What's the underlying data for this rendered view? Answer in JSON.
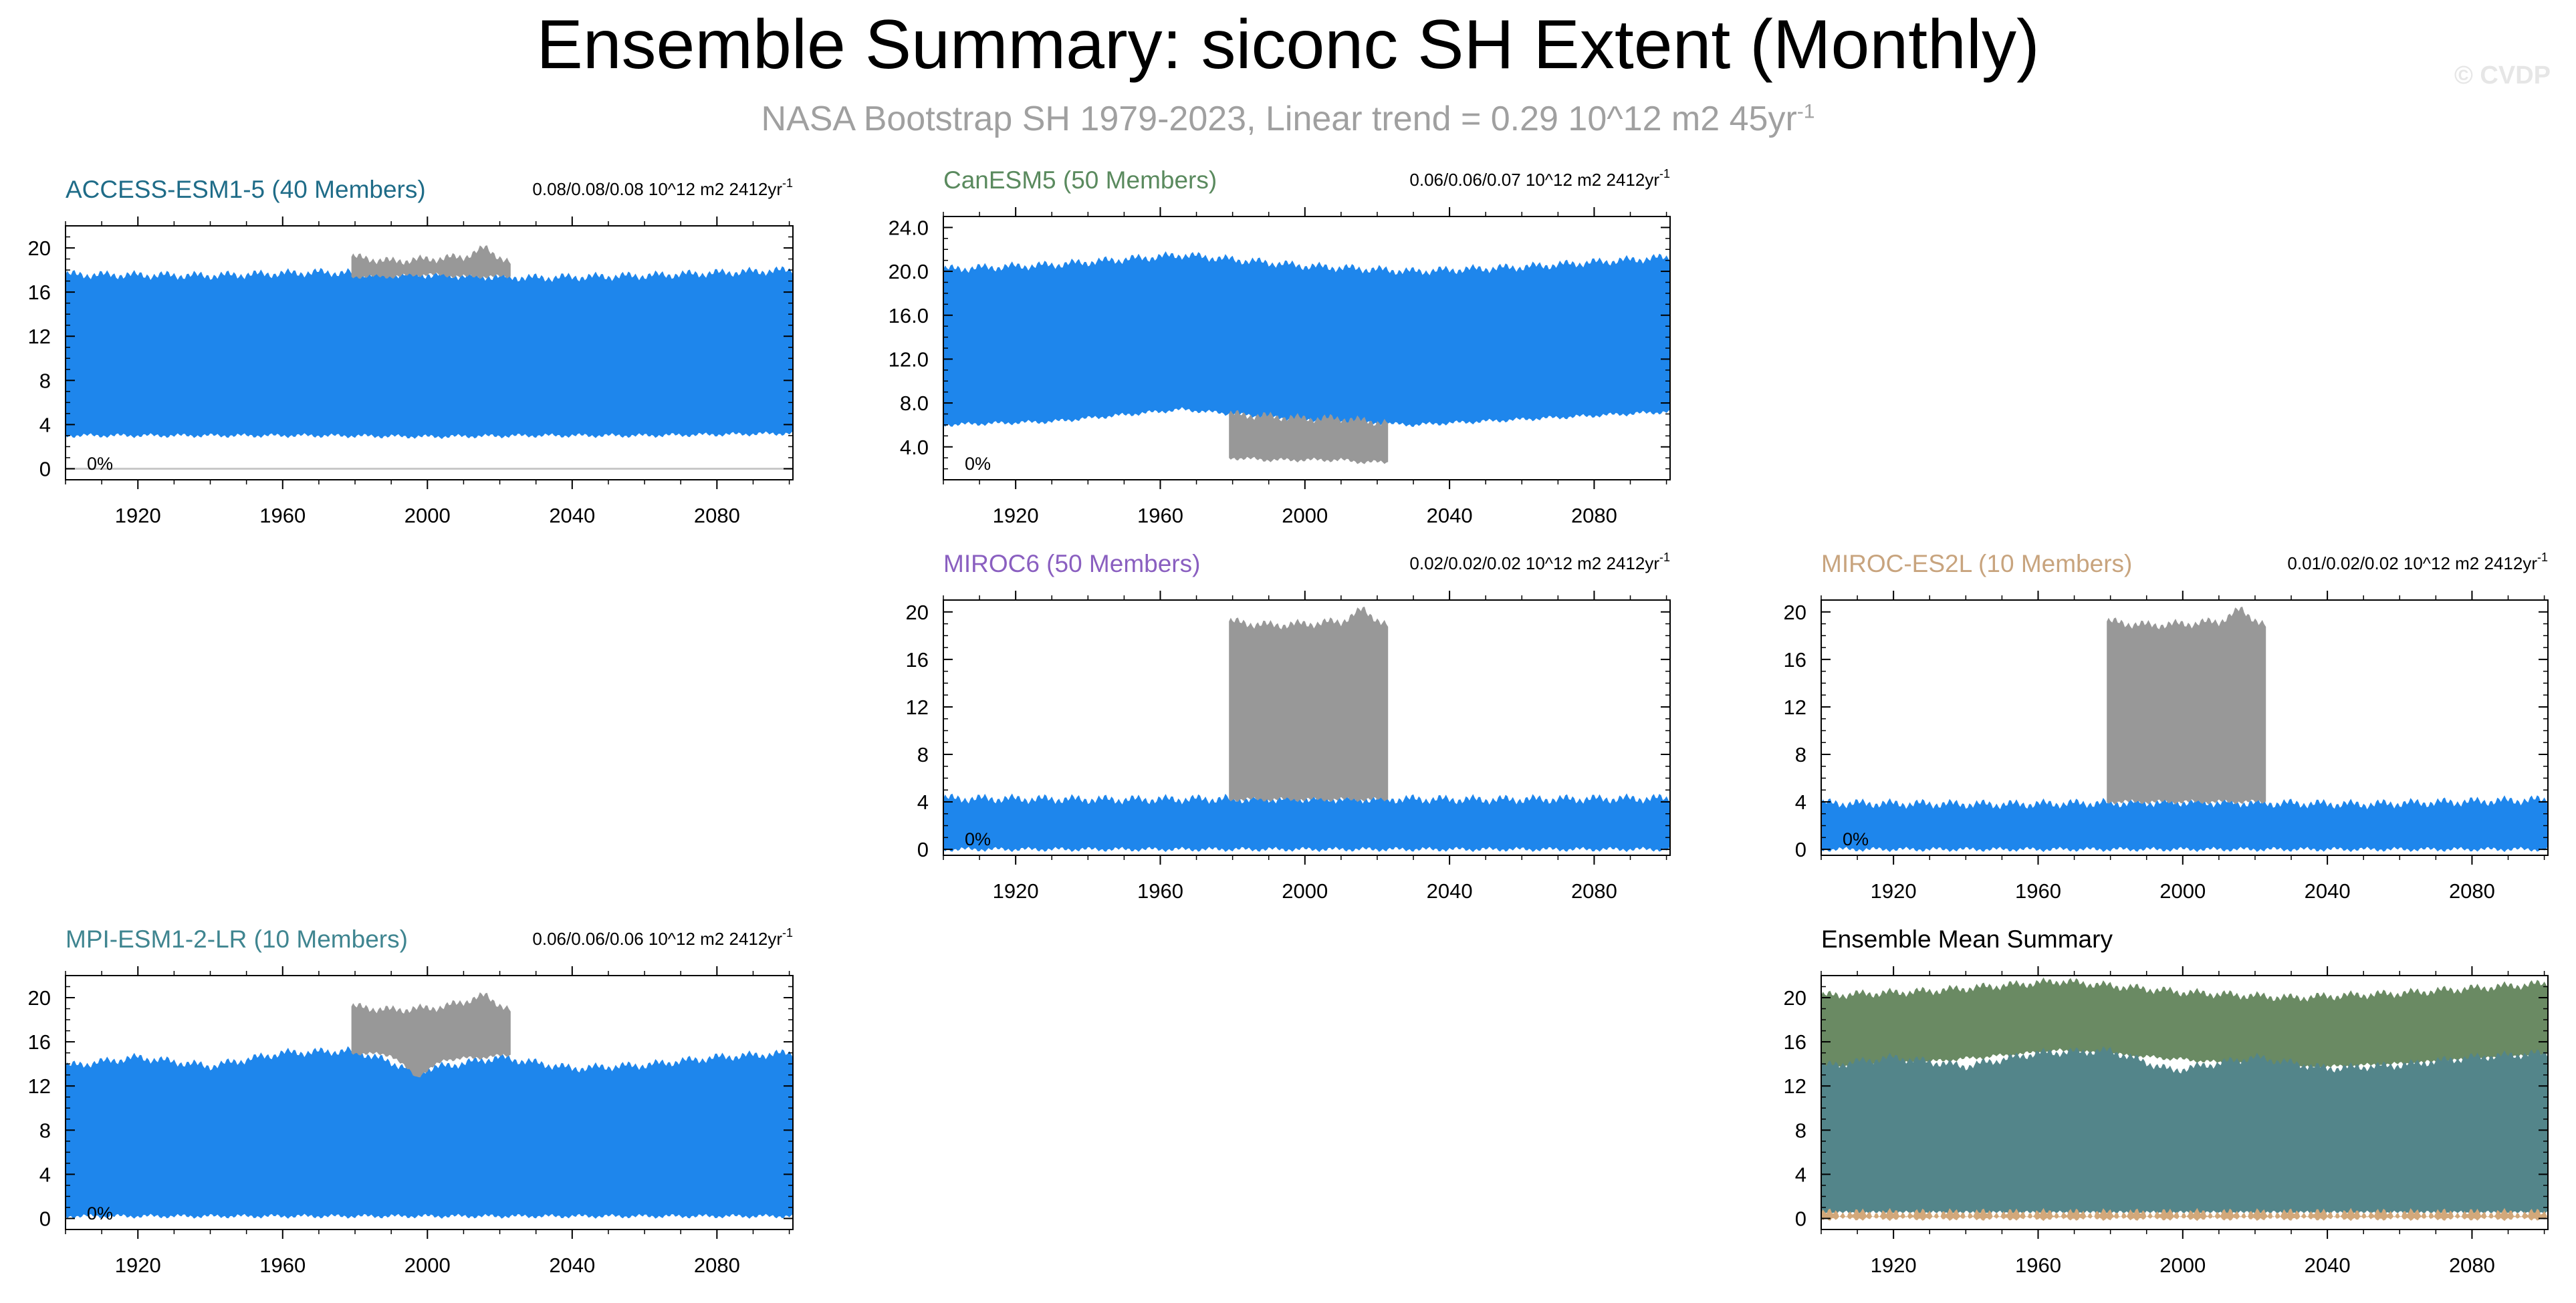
{
  "title": "Ensemble Summary: siconc SH Extent (Monthly)",
  "subtitle": {
    "text": "NASA Bootstrap SH 1979-2023, Linear trend = 0.29 10^12 m2 45yr",
    "sup": "-1"
  },
  "credit": "© CVDP",
  "colors": {
    "model_fill": "#1e86ec",
    "obs_fill": "#989898",
    "mean_canesm5": "#6a8a63",
    "mean_mpi": "#53858a",
    "mean_miroc": "#d2a87a"
  },
  "chart_data": [
    {
      "type": "area",
      "panel": "access",
      "title": "ACCESS-ESM1-5 (40 Members)",
      "title_color": "#1f6c88",
      "trend_text": "0.08/0.08/0.08 10^12 m2 2412yr",
      "trend_sup": "-1",
      "percent_label": "0%",
      "xlim": [
        1900,
        2101
      ],
      "ylim": [
        -1,
        22
      ],
      "yticks": [
        0,
        4,
        8,
        12,
        16,
        20
      ],
      "ytick_labels": [
        "0",
        "4",
        "8",
        "12",
        "16",
        "20"
      ],
      "xticks": [
        1920,
        1960,
        2000,
        2040,
        2080
      ],
      "ensemble_band": {
        "x": [
          1900,
          1940,
          1970,
          2000,
          2030,
          2060,
          2101
        ],
        "max": [
          17.6,
          17.5,
          17.8,
          17.6,
          17.3,
          17.5,
          18.0
        ],
        "min": [
          3.0,
          3.0,
          3.0,
          2.9,
          3.0,
          3.0,
          3.2
        ]
      },
      "observations": {
        "x": [
          1979,
          1990,
          2000,
          2010,
          2016,
          2023
        ],
        "max": [
          19.2,
          18.8,
          19.0,
          19.2,
          20.0,
          18.6
        ],
        "min": [
          17.4,
          17.4,
          17.6,
          17.4,
          17.4,
          17.4
        ]
      },
      "show_zero_line": true
    },
    {
      "type": "area",
      "panel": "canesm5",
      "title": "CanESM5 (50 Members)",
      "title_color": "#5a8a5e",
      "trend_text": "0.06/0.06/0.07 10^12 m2 2412yr",
      "trend_sup": "-1",
      "percent_label": "0%",
      "xlim": [
        1900,
        2101
      ],
      "ylim": [
        1.0,
        25.0
      ],
      "yticks": [
        4,
        8,
        12,
        16,
        20,
        24
      ],
      "ytick_labels": [
        "4.0",
        "8.0",
        "12.0",
        "16.0",
        "20.0",
        "24.0"
      ],
      "xticks": [
        1920,
        1960,
        2000,
        2040,
        2080
      ],
      "ensemble_band": {
        "x": [
          1900,
          1930,
          1966,
          2000,
          2030,
          2060,
          2101
        ],
        "max": [
          20.2,
          20.6,
          21.5,
          20.5,
          20.0,
          20.4,
          21.3
        ],
        "min": [
          6.0,
          6.3,
          7.4,
          6.4,
          6.0,
          6.5,
          7.2
        ]
      },
      "observations": {
        "x": [
          1979,
          1990,
          2000,
          2010,
          2016,
          2023
        ],
        "max": [
          7.0,
          6.8,
          6.6,
          6.6,
          6.4,
          6.2
        ],
        "min": [
          3.0,
          2.8,
          2.8,
          2.8,
          2.6,
          2.6
        ]
      },
      "show_zero_line": false
    },
    {
      "type": "area",
      "panel": "miroc6",
      "title": "MIROC6 (50 Members)",
      "title_color": "#8a5fc0",
      "trend_text": "0.02/0.02/0.02 10^12 m2 2412yr",
      "trend_sup": "-1",
      "percent_label": "0%",
      "xlim": [
        1900,
        2101
      ],
      "ylim": [
        -0.5,
        21
      ],
      "yticks": [
        0,
        4,
        8,
        12,
        16,
        20
      ],
      "ytick_labels": [
        "0",
        "4",
        "8",
        "12",
        "16",
        "20"
      ],
      "xticks": [
        1920,
        1960,
        2000,
        2040,
        2080
      ],
      "ensemble_band": {
        "x": [
          1900,
          1950,
          2000,
          2050,
          2101
        ],
        "max": [
          4.3,
          4.2,
          4.3,
          4.2,
          4.3
        ],
        "min": [
          0.0,
          0.0,
          0.0,
          0.0,
          0.0
        ]
      },
      "observations": {
        "x": [
          1979,
          1990,
          2000,
          2010,
          2016,
          2023
        ],
        "max": [
          19.2,
          18.9,
          19.0,
          19.2,
          20.2,
          18.8
        ],
        "min": [
          4.2,
          4.2,
          4.2,
          4.2,
          4.2,
          4.2
        ]
      },
      "show_zero_line": false
    },
    {
      "type": "area",
      "panel": "miroces2l",
      "title": "MIROC-ES2L (10 Members)",
      "title_color": "#c8a47e",
      "trend_text": "0.01/0.02/0.02 10^12 m2 2412yr",
      "trend_sup": "-1",
      "percent_label": "0%",
      "xlim": [
        1900,
        2101
      ],
      "ylim": [
        -0.5,
        21
      ],
      "yticks": [
        0,
        4,
        8,
        12,
        16,
        20
      ],
      "ytick_labels": [
        "0",
        "4",
        "8",
        "12",
        "16",
        "20"
      ],
      "xticks": [
        1920,
        1960,
        2000,
        2040,
        2080
      ],
      "ensemble_band": {
        "x": [
          1900,
          1950,
          2000,
          2050,
          2101
        ],
        "max": [
          3.9,
          3.8,
          4.0,
          3.8,
          4.2
        ],
        "min": [
          0.0,
          0.0,
          0.0,
          0.0,
          0.0
        ]
      },
      "observations": {
        "x": [
          1979,
          1990,
          2000,
          2010,
          2016,
          2023
        ],
        "max": [
          19.2,
          18.9,
          19.0,
          19.2,
          20.2,
          18.8
        ],
        "min": [
          4.0,
          4.0,
          4.0,
          4.0,
          4.0,
          4.0
        ]
      },
      "show_zero_line": false
    },
    {
      "type": "area",
      "panel": "mpi",
      "title": "MPI-ESM1-2-LR (10 Members)",
      "title_color": "#3f8590",
      "trend_text": "0.06/0.06/0.06 10^12 m2 2412yr",
      "trend_sup": "-1",
      "percent_label": "0%",
      "xlim": [
        1900,
        2101
      ],
      "ylim": [
        -1,
        22
      ],
      "yticks": [
        0,
        4,
        8,
        12,
        16,
        20
      ],
      "ytick_labels": [
        "0",
        "4",
        "8",
        "12",
        "16",
        "20"
      ],
      "xticks": [
        1920,
        1960,
        2000,
        2040,
        2080
      ],
      "ensemble_band": {
        "x": [
          1900,
          1920,
          1940,
          1960,
          1980,
          1997,
          2020,
          2040,
          2060,
          2080,
          2101
        ],
        "max": [
          13.8,
          14.6,
          13.8,
          15.0,
          15.2,
          13.4,
          14.6,
          13.6,
          13.9,
          14.6,
          15.0
        ],
        "min": [
          0.2,
          0.2,
          0.2,
          0.2,
          0.2,
          0.2,
          0.2,
          0.2,
          0.2,
          0.2,
          0.2
        ]
      },
      "observations": {
        "x": [
          1979,
          1990,
          1997,
          2005,
          2016,
          2023
        ],
        "max": [
          19.2,
          18.9,
          19.0,
          19.2,
          20.2,
          18.8
        ],
        "min": [
          15.0,
          14.8,
          12.8,
          14.4,
          14.6,
          14.8
        ]
      },
      "show_zero_line": false
    },
    {
      "type": "area",
      "panel": "ensmean",
      "title": "Ensemble Mean Summary",
      "title_color": "#000000",
      "xlim": [
        1900,
        2101
      ],
      "ylim": [
        -1,
        22
      ],
      "yticks": [
        0,
        4,
        8,
        12,
        16,
        20
      ],
      "ytick_labels": [
        "0",
        "4",
        "8",
        "12",
        "16",
        "20"
      ],
      "xticks": [
        1920,
        1960,
        2000,
        2040,
        2080
      ],
      "series": [
        {
          "x": [
            1900,
            1930,
            1966,
            2000,
            2030,
            2060,
            2101
          ],
          "max": [
            20.2,
            20.6,
            21.5,
            20.5,
            20.0,
            20.4,
            21.3
          ],
          "min": [
            13.5,
            14.2,
            15.2,
            14.4,
            13.6,
            14.0,
            14.8
          ]
        },
        {
          "x": [
            1900,
            1920,
            1940,
            1960,
            1980,
            1997,
            2020,
            2040,
            2060,
            2080,
            2101
          ],
          "max": [
            13.8,
            14.6,
            13.8,
            15.0,
            15.2,
            13.4,
            14.6,
            13.6,
            13.9,
            14.6,
            15.0
          ],
          "min": [
            0.5,
            0.5,
            0.5,
            0.5,
            0.5,
            0.5,
            0.5,
            0.5,
            0.5,
            0.5,
            0.5
          ]
        },
        {
          "x": [
            1900,
            2000,
            2101
          ],
          "max": [
            0.5,
            0.5,
            0.5
          ],
          "min": [
            0.0,
            0.0,
            0.0
          ]
        }
      ]
    }
  ]
}
